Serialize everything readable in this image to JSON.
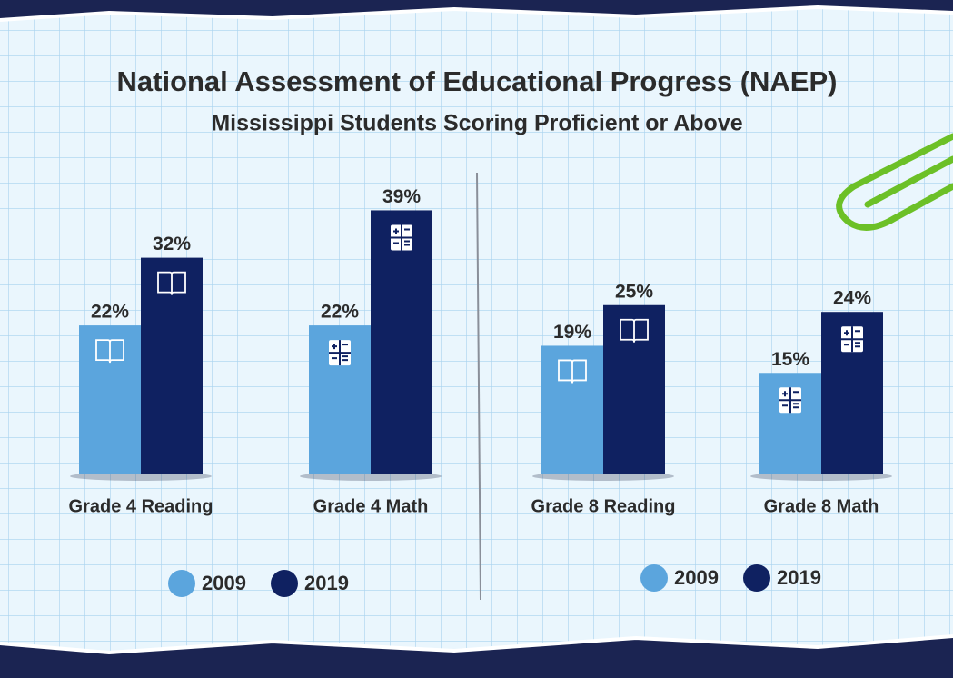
{
  "chart_data": {
    "type": "bar",
    "title": "National Assessment of Educational Progress (NAEP)",
    "subtitle": "Mississippi Students Scoring Proficient or Above",
    "categories": [
      "Grade 4 Reading",
      "Grade 4 Math",
      "Grade 8 Reading",
      "Grade 8 Math"
    ],
    "series": [
      {
        "name": "2009",
        "color": "#5ba5dd",
        "values": [
          22,
          22,
          19,
          15
        ],
        "value_labels": [
          "22%",
          "22%",
          "19%",
          "15%"
        ]
      },
      {
        "name": "2019",
        "color": "#0f2161",
        "values": [
          32,
          39,
          25,
          24
        ],
        "value_labels": [
          "32%",
          "39%",
          "25%",
          "24%"
        ]
      }
    ]
  }
}
